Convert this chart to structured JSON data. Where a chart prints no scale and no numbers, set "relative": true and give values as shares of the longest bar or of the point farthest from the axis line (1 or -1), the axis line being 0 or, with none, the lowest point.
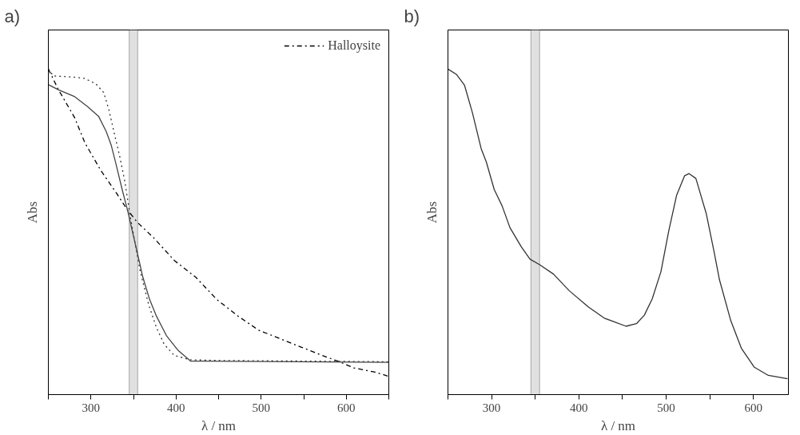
{
  "chart_data": [
    {
      "type": "line",
      "title": "a)",
      "xlabel": "λ / nm",
      "ylabel": "Abs",
      "relative": true,
      "legend": "top right",
      "xlim": [
        250,
        650
      ],
      "xticks": [
        {
          "value": 250,
          "label": null
        },
        300,
        {
          "value": 350,
          "label": null
        },
        400,
        {
          "value": 450,
          "label": null
        },
        500,
        {
          "value": 550,
          "label": null
        },
        600,
        {
          "value": 650,
          "label": null
        }
      ],
      "bands": [
        {
          "axis": "x",
          "from": 345,
          "to": 355,
          "color": "#e0e0e0"
        }
      ],
      "series": [
        {
          "name": "Halloysite",
          "color": "#000000",
          "line_style": "dashdot",
          "x": [
            250,
            262,
            281,
            293,
            312,
            330,
            343,
            355,
            374,
            398,
            423,
            448,
            473,
            497,
            522,
            547,
            572,
            590,
            609,
            634,
            650
          ],
          "values": [
            1.0,
            0.936,
            0.85,
            0.773,
            0.687,
            0.619,
            0.567,
            0.528,
            0.481,
            0.412,
            0.361,
            0.292,
            0.241,
            0.198,
            0.172,
            0.146,
            0.12,
            0.103,
            0.082,
            0.069,
            0.056
          ]
        },
        {
          "color": "#333333",
          "line_style": "dotted",
          "x": [
            250,
            256,
            281,
            293,
            306,
            315,
            321,
            327,
            334,
            340,
            346,
            352,
            358,
            368,
            377,
            386,
            398,
            417,
            448,
            650
          ],
          "values": [
            1.0,
            0.979,
            0.975,
            0.971,
            0.954,
            0.928,
            0.876,
            0.808,
            0.73,
            0.653,
            0.55,
            0.464,
            0.378,
            0.275,
            0.206,
            0.155,
            0.12,
            0.107,
            0.105,
            0.101
          ]
        },
        {
          "color": "#444444",
          "line_style": "solid",
          "x": [
            250,
            262,
            281,
            296,
            309,
            318,
            324,
            329,
            337,
            343,
            349,
            355,
            361,
            369,
            377,
            389,
            402,
            417,
            650
          ],
          "values": [
            0.952,
            0.936,
            0.915,
            0.885,
            0.855,
            0.808,
            0.765,
            0.713,
            0.627,
            0.567,
            0.498,
            0.43,
            0.361,
            0.292,
            0.241,
            0.18,
            0.137,
            0.103,
            0.099
          ]
        }
      ]
    },
    {
      "type": "line",
      "title": "b)",
      "xlabel": "λ / nm",
      "ylabel": "Abs",
      "relative": true,
      "xlim": [
        250,
        640
      ],
      "xticks": [
        {
          "value": 250,
          "label": null
        },
        300,
        {
          "value": 350,
          "label": null
        },
        400,
        {
          "value": 450,
          "label": null
        },
        500,
        {
          "value": 550,
          "label": null
        },
        600
      ],
      "bands": [
        {
          "axis": "x",
          "from": 345,
          "to": 355,
          "color": "#e0e0e0"
        }
      ],
      "series": [
        {
          "color": "#333333",
          "line_style": "solid",
          "x": [
            250,
            260,
            269,
            278,
            288,
            294,
            303,
            312,
            321,
            334,
            344,
            355,
            371,
            389,
            411,
            429,
            454,
            466,
            475,
            484,
            494,
            503,
            512,
            521,
            526,
            534,
            546,
            555,
            561,
            574,
            586,
            601,
            617,
            639
          ],
          "values": [
            1.0,
            0.983,
            0.95,
            0.866,
            0.756,
            0.714,
            0.63,
            0.58,
            0.513,
            0.454,
            0.416,
            0.399,
            0.37,
            0.319,
            0.269,
            0.235,
            0.21,
            0.218,
            0.244,
            0.294,
            0.378,
            0.504,
            0.613,
            0.672,
            0.679,
            0.664,
            0.555,
            0.437,
            0.353,
            0.227,
            0.143,
            0.084,
            0.059,
            0.049
          ]
        }
      ]
    }
  ]
}
